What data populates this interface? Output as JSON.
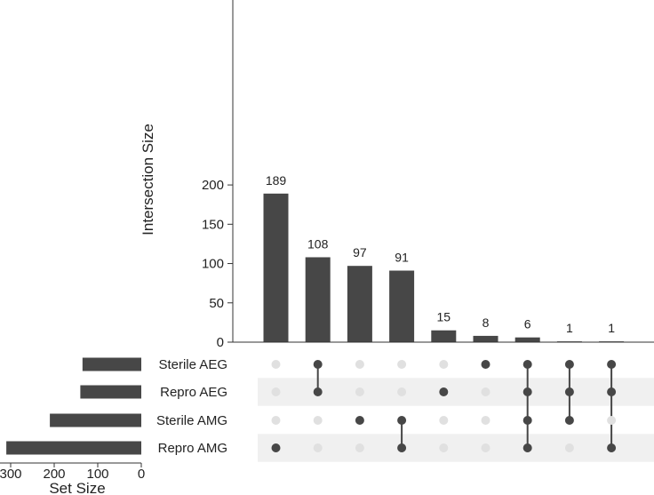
{
  "chart_data": {
    "type": "bar",
    "intersections": {
      "ylabel": "Intersection Size",
      "yticks": [
        0,
        50,
        100,
        150,
        200
      ],
      "values": [
        189,
        108,
        97,
        91,
        15,
        8,
        6,
        1,
        1
      ],
      "labels": [
        "189",
        "108",
        "97",
        "91",
        "15",
        "8",
        "6",
        "1",
        "1"
      ],
      "sets_membership": [
        [
          "Repro AMG"
        ],
        [
          "Sterile AEG",
          "Repro AEG"
        ],
        [
          "Sterile AMG"
        ],
        [
          "Sterile AMG",
          "Repro AMG"
        ],
        [
          "Repro AEG"
        ],
        [
          "Sterile AEG"
        ],
        [
          "Sterile AEG",
          "Repro AEG",
          "Sterile AMG",
          "Repro AMG"
        ],
        [
          "Sterile AEG",
          "Repro AEG",
          "Sterile AMG"
        ],
        [
          "Sterile AEG",
          "Repro AEG",
          "Repro AMG"
        ]
      ]
    },
    "sets": {
      "xlabel": "Set Size",
      "xticks": [
        300,
        200,
        100,
        0
      ],
      "xtick_labels": [
        "300",
        "200",
        "100",
        "0"
      ],
      "names": [
        "Sterile AEG",
        "Repro AEG",
        "Sterile AMG",
        "Repro AMG"
      ],
      "values": [
        135,
        140,
        210,
        310
      ]
    },
    "colors": {
      "bar": "#474747",
      "dot_active": "#474747",
      "dot_inactive": "#e0e0e0",
      "stripe": "#f0f0f0",
      "axis": "#333333"
    }
  }
}
